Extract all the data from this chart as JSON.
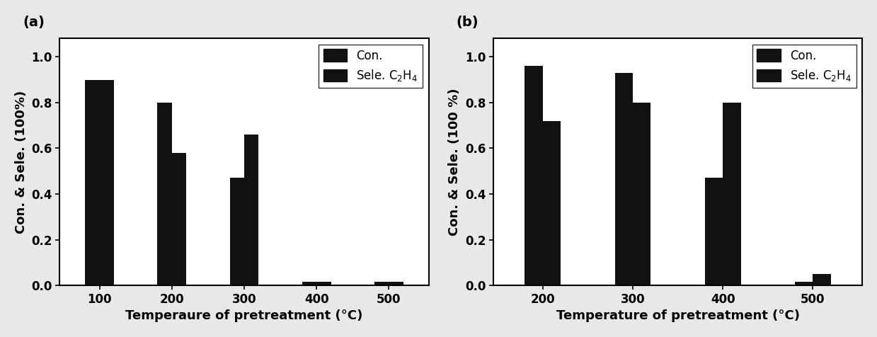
{
  "panel_a": {
    "label": "(a)",
    "xlabel": "Temperaure of pretreatment (°C)",
    "ylabel": "Con. & Sele. (100%)",
    "x_ticks": [
      100,
      200,
      300,
      400,
      500
    ],
    "con_values": [
      0.9,
      0.8,
      0.47,
      0.015,
      0.015
    ],
    "sele_values": [
      0.9,
      0.58,
      0.66,
      0.015,
      0.015
    ],
    "ylim": [
      0.0,
      1.08
    ],
    "yticks": [
      0.0,
      0.2,
      0.4,
      0.6,
      0.8,
      1.0
    ]
  },
  "panel_b": {
    "label": "(b)",
    "xlabel": "Temperature of pretreatment (°C)",
    "ylabel": "Con. & Sele. (100 %)",
    "x_ticks": [
      200,
      300,
      400,
      500
    ],
    "con_values": [
      0.96,
      0.93,
      0.47,
      0.015
    ],
    "sele_values": [
      0.72,
      0.8,
      0.8,
      0.05
    ],
    "ylim": [
      0.0,
      1.08
    ],
    "yticks": [
      0.0,
      0.2,
      0.4,
      0.6,
      0.8,
      1.0
    ]
  },
  "bar_color": "#111111",
  "legend_labels": [
    "Con.",
    "Sele. C$_2$H$_4$"
  ],
  "label_fontsize": 13,
  "tick_fontsize": 12,
  "panel_label_fontsize": 14,
  "bg_color": "#e8e8e8"
}
